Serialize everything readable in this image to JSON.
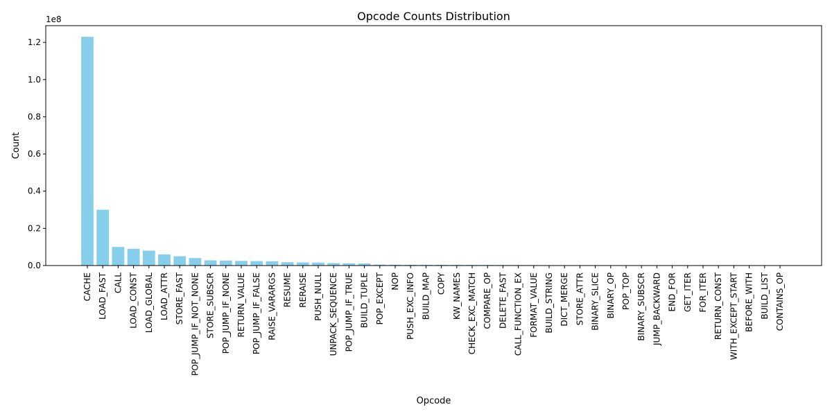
{
  "chart_data": {
    "type": "bar",
    "title": "Opcode Counts Distribution",
    "xlabel": "Opcode",
    "ylabel": "Count",
    "y_offset_label": "1e8",
    "y_scale_factor": 100000000,
    "ylim": [
      0,
      129000000
    ],
    "yticks": [
      0,
      20000000,
      40000000,
      60000000,
      80000000,
      100000000,
      120000000
    ],
    "ytick_labels": [
      "0.0",
      "0.2",
      "0.4",
      "0.6",
      "0.8",
      "1.0",
      "1.2"
    ],
    "grid": false,
    "bar_color": "#87CEEB",
    "categories": [
      "CACHE",
      "LOAD_FAST",
      "CALL",
      "LOAD_CONST",
      "LOAD_GLOBAL",
      "LOAD_ATTR",
      "STORE_FAST",
      "POP_JUMP_IF_NOT_NONE",
      "STORE_SUBSCR",
      "POP_JUMP_IF_NONE",
      "RETURN_VALUE",
      "POP_JUMP_IF_FALSE",
      "RAISE_VARARGS",
      "RESUME",
      "RERAISE",
      "PUSH_NULL",
      "UNPACK_SEQUENCE",
      "POP_JUMP_IF_TRUE",
      "BUILD_TUPLE",
      "POP_EXCEPT",
      "NOP",
      "PUSH_EXC_INFO",
      "BUILD_MAP",
      "COPY",
      "KW_NAMES",
      "CHECK_EXC_MATCH",
      "COMPARE_OP",
      "DELETE_FAST",
      "CALL_FUNCTION_EX",
      "FORMAT_VALUE",
      "BUILD_STRING",
      "DICT_MERGE",
      "STORE_ATTR",
      "BINARY_SLICE",
      "BINARY_OP",
      "POP_TOP",
      "BINARY_SUBSCR",
      "JUMP_BACKWARD",
      "END_FOR",
      "GET_ITER",
      "FOR_ITER",
      "RETURN_CONST",
      "WITH_EXCEPT_START",
      "BEFORE_WITH",
      "BUILD_LIST",
      "CONTAINS_OP"
    ],
    "values": [
      123000000,
      30000000,
      10000000,
      9000000,
      8000000,
      6000000,
      5000000,
      4000000,
      2800000,
      2700000,
      2500000,
      2400000,
      2300000,
      1800000,
      1700000,
      1600000,
      1300000,
      1200000,
      1100000,
      500000,
      450000,
      420000,
      400000,
      380000,
      350000,
      320000,
      300000,
      280000,
      260000,
      240000,
      220000,
      200000,
      0,
      0,
      0,
      0,
      0,
      0,
      0,
      0,
      0,
      0,
      0,
      0,
      0,
      0
    ]
  }
}
